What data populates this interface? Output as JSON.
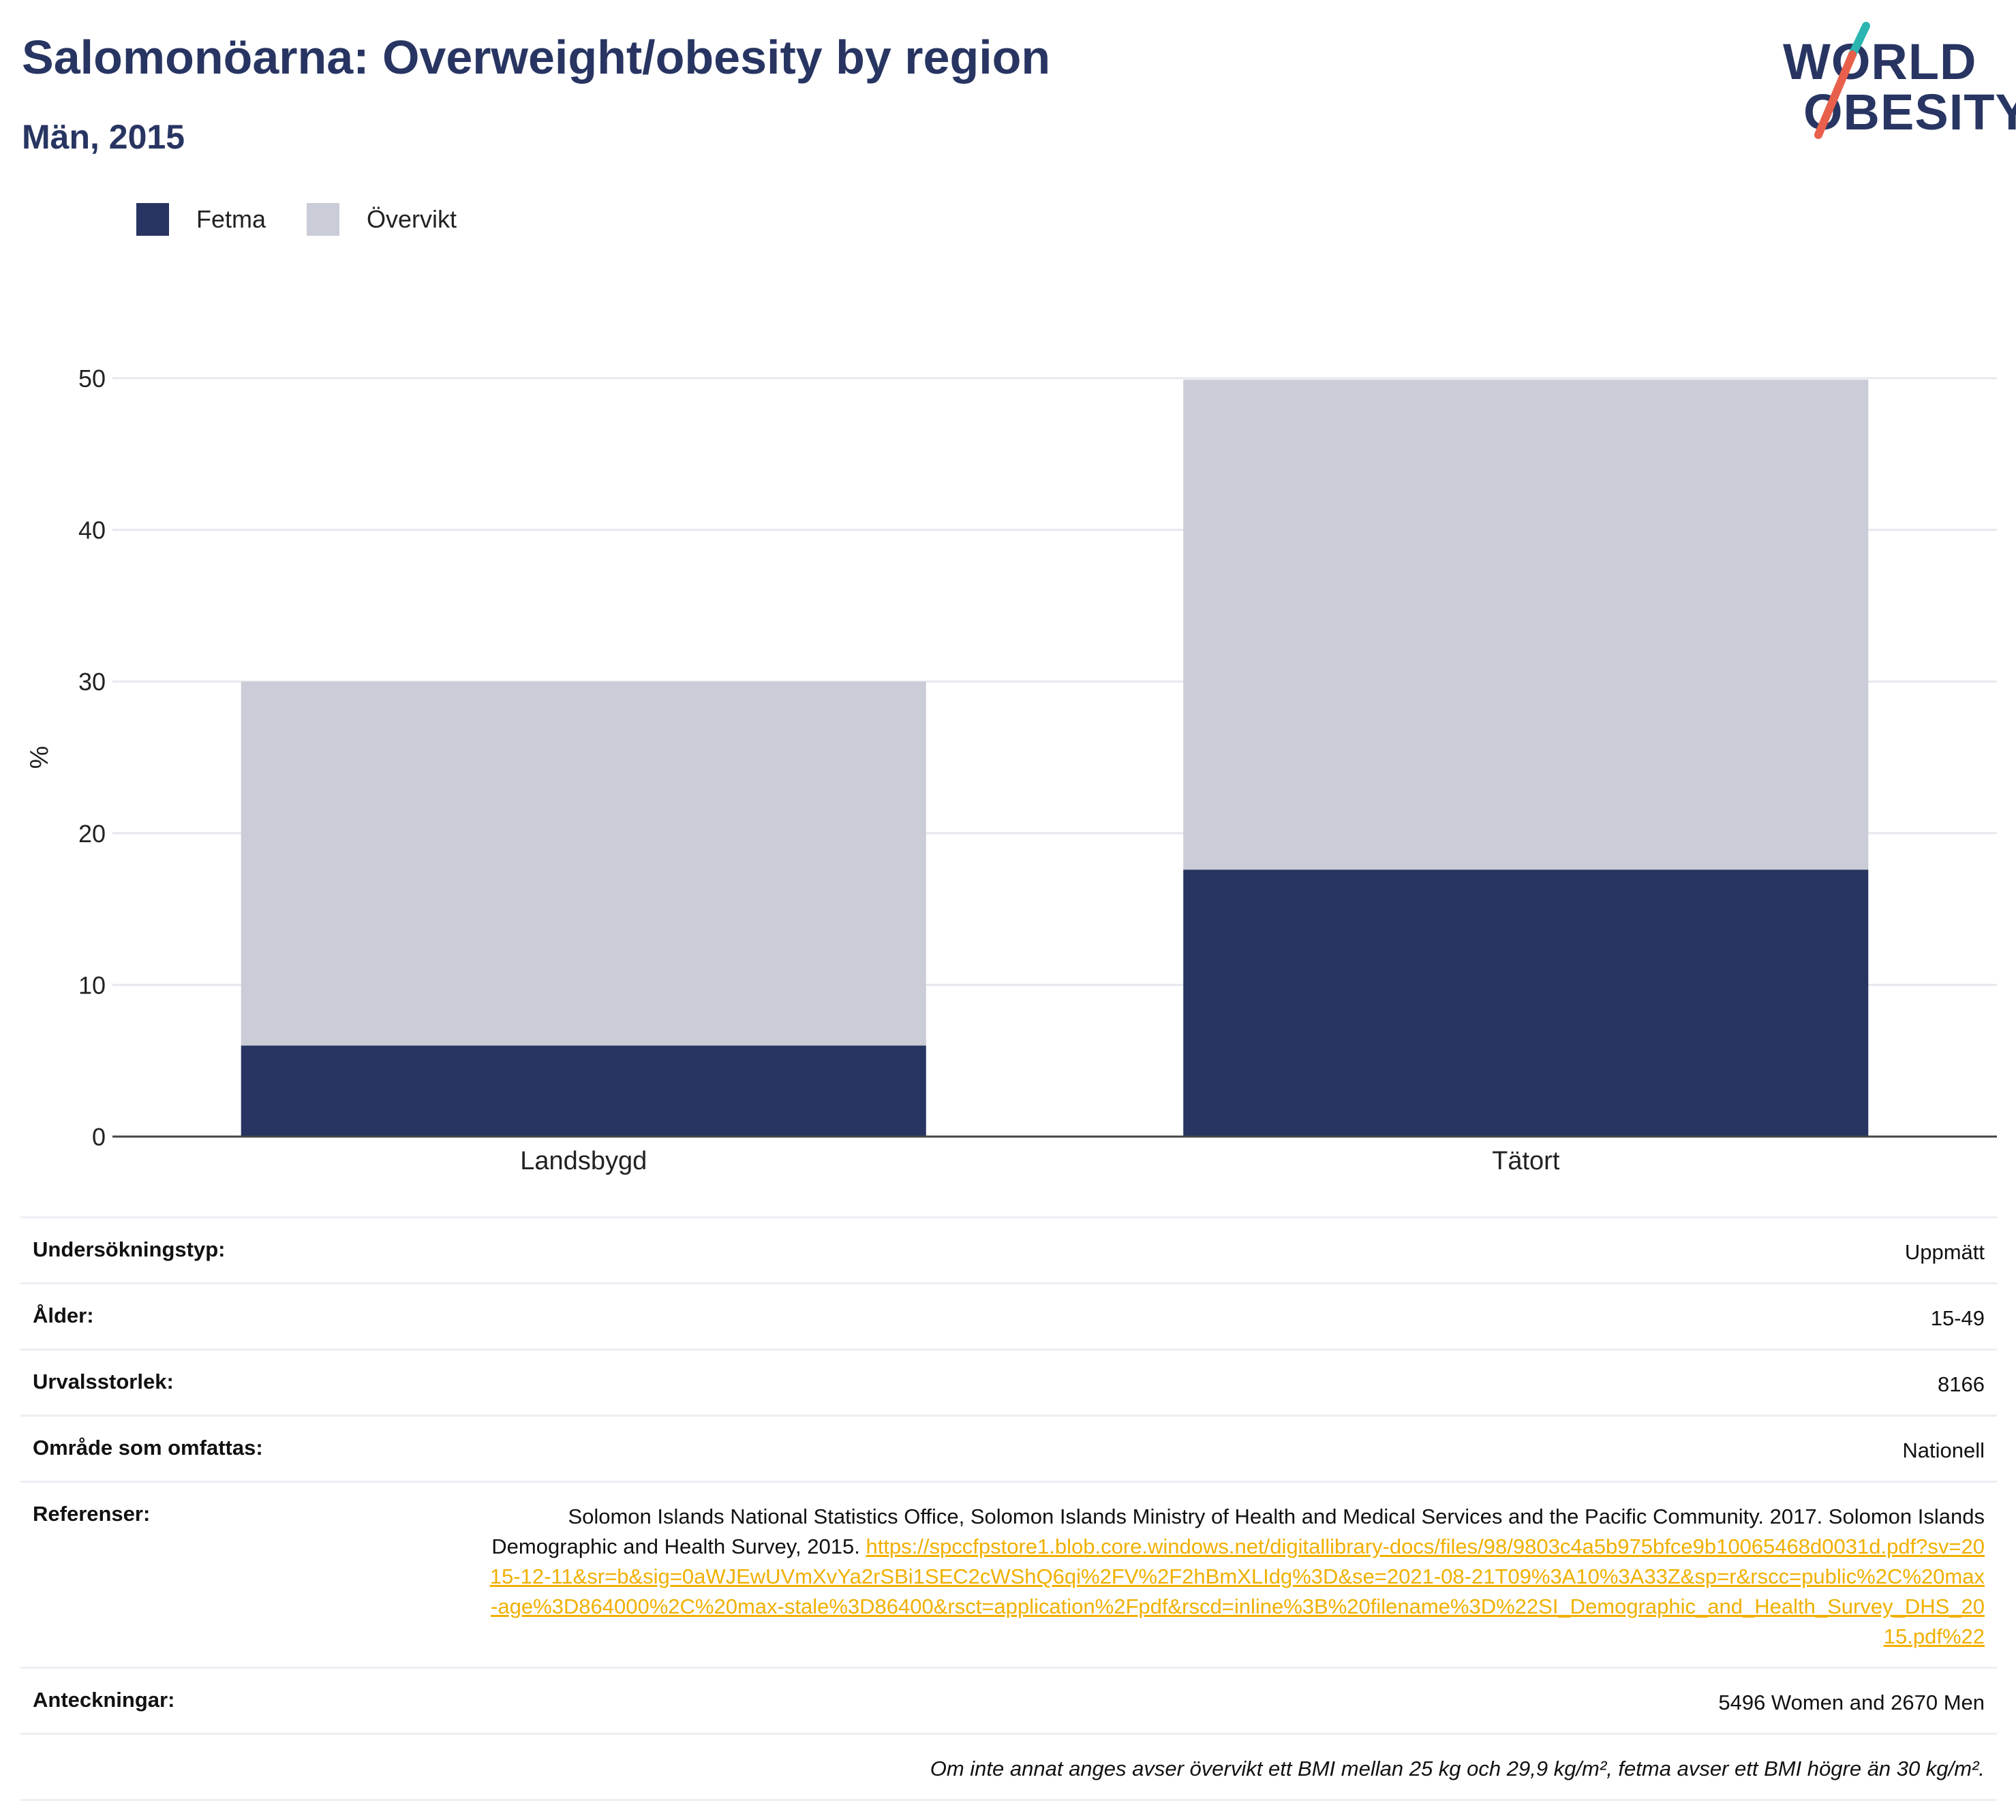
{
  "header": {
    "title": "Salomonöarna: Overweight/obesity by region",
    "subtitle": "Män, 2015"
  },
  "logo": {
    "line1": "WORLD",
    "line2": "OBESITY",
    "colors": {
      "text": "#283562",
      "accent_red": "#e8604c",
      "accent_teal": "#2bb5b0"
    }
  },
  "legend": {
    "items": [
      {
        "label": "Fetma",
        "color": "#283562"
      },
      {
        "label": "Övervikt",
        "color": "#caccd7"
      }
    ]
  },
  "chart_data": {
    "type": "bar",
    "stacked": true,
    "categories": [
      "Landsbygd",
      "Tätort"
    ],
    "series": [
      {
        "name": "Fetma",
        "color": "#283562",
        "values": [
          6.0,
          17.6
        ]
      },
      {
        "name": "Övervikt",
        "color": "#caccd7",
        "values": [
          24.0,
          32.3
        ]
      }
    ],
    "ylabel": "%",
    "ylim": [
      0,
      50
    ],
    "yticks": [
      0,
      10,
      20,
      30,
      40,
      50
    ],
    "grid": true,
    "legend_position": "top-left"
  },
  "info": {
    "survey_type_label": "Undersökningstyp:",
    "survey_type_value": "Uppmätt",
    "age_label": "Ålder:",
    "age_value": "15-49",
    "sample_size_label": "Urvalsstorlek:",
    "sample_size_value": "8166",
    "area_label": "Område som omfattas:",
    "area_value": "Nationell",
    "references_label": "Referenser:",
    "references_text": "Solomon Islands National Statistics Office, Solomon Islands Ministry of Health and Medical Services and the Pacific Community. 2017. Solomon Islands Demographic and Health Survey, 2015.",
    "references_link": "https://spccfpstore1.blob.core.windows.net/digitallibrary-docs/files/98/9803c4a5b975bfce9b10065468d0031d.pdf?sv=2015-12-11&sr=b&sig=0aWJEwUVmXvYa2rSBi1SEC2cWShQ6qi%2FV%2F2hBmXLIdg%3D&se=2021-08-21T09%3A10%3A33Z&sp=r&rscc=public%2C%20max-age%3D864000%2C%20max-stale%3D86400&rsct=application%2Fpdf&rscd=inline%3B%20filename%3D%22SI_Demographic_and_Health_Survey_DHS_2015.pdf%22",
    "notes_label": "Anteckningar:",
    "notes_value": "5496 Women and 2670 Men",
    "footnote": "Om inte annat anges avser övervikt ett BMI mellan 25 kg och 29,9 kg/m², fetma avser ett BMI högre än 30 kg/m²."
  }
}
